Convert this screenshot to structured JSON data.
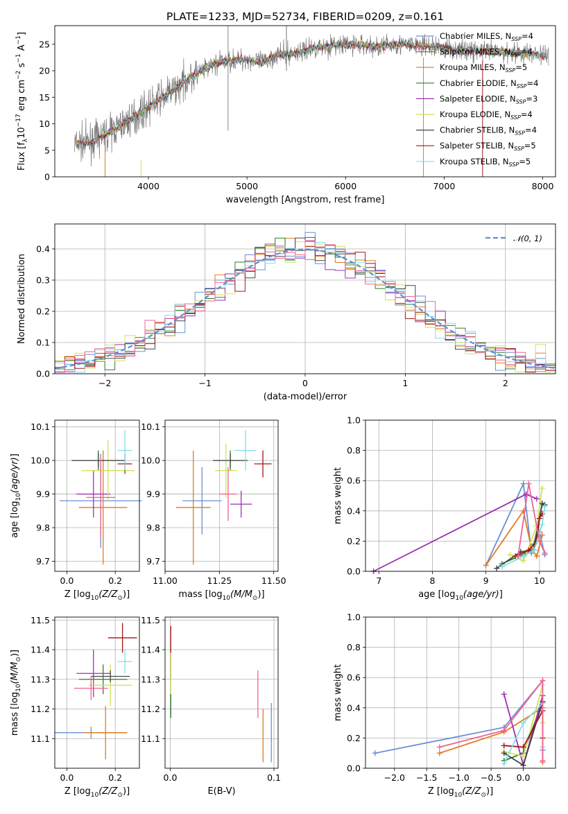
{
  "figure": {
    "title": "PLATE=1233, MJD=52734, FIBERID=0209, z=0.161",
    "colors": [
      "#6a8fd8",
      "#e07b1f",
      "#aaaaaa",
      "#2e7d32",
      "#9b2fb0",
      "#d4e157",
      "#444444",
      "#a31515",
      "#80deea",
      "#f06292",
      "#777777"
    ]
  },
  "chart_data": [
    {
      "id": "spectrum",
      "type": "line",
      "title": "PLATE=1233, MJD=52734, FIBERID=0209, z=0.161",
      "xlabel": "wavelength [Angstrom, rest frame]",
      "ylabel": "Flux [f_λ 10^-17 erg cm^-2 s^-1 A^-1]",
      "xlim": [
        3050,
        8130
      ],
      "ylim": [
        0,
        28.5
      ],
      "xticks": [
        "4000",
        "5000",
        "6000",
        "7000",
        "8000"
      ],
      "yticks": [
        "0",
        "5",
        "10",
        "15",
        "20",
        "25"
      ],
      "grid": false,
      "legend_position": "top-right",
      "data_x": [
        3250,
        3400,
        3550,
        3700,
        3850,
        3950,
        4100,
        4250,
        4400,
        4550,
        4700,
        4850,
        5000,
        5150,
        5300,
        5500,
        5700,
        5900,
        6100,
        6300,
        6500,
        6700,
        6900,
        7100,
        7300,
        7500,
        7700,
        7900,
        8050
      ],
      "data_y": [
        6.2,
        6.5,
        7.8,
        9.5,
        11.2,
        12.5,
        14.5,
        16.2,
        18.5,
        20.0,
        21.5,
        22.0,
        22.2,
        21.5,
        23.0,
        23.3,
        24.5,
        24.8,
        25.0,
        24.5,
        25.0,
        24.8,
        24.5,
        24.0,
        23.8,
        23.5,
        23.5,
        23.2,
        22.8
      ],
      "legend": [
        {
          "label": "Chabrier MILES, N_SSP=4",
          "color": "#6a8fd8"
        },
        {
          "label": "Salpeter MILES, N_SSP=4",
          "color": "#777777"
        },
        {
          "label": "Kroupa MILES, N_SSP=5",
          "color": "#e07b1f"
        },
        {
          "label": "Chabrier ELODIE, N_SSP=4",
          "color": "#2e7d32"
        },
        {
          "label": "Salpeter ELODIE, N_SSP=3",
          "color": "#9b2fb0"
        },
        {
          "label": "Kroupa ELODIE, N_SSP=4",
          "color": "#d4e157"
        },
        {
          "label": "Chabrier STELIB, N_SSP=4",
          "color": "#444444"
        },
        {
          "label": "Salpeter STELIB, N_SSP=5",
          "color": "#a31515"
        },
        {
          "label": "Kroupa STELIB, N_SSP=5",
          "color": "#80deea"
        }
      ]
    },
    {
      "id": "residuals",
      "type": "line",
      "xlabel": "(data-model)/error",
      "ylabel": "Normed distribution",
      "xlim": [
        -2.5,
        2.5
      ],
      "ylim": [
        0,
        0.48
      ],
      "xticks": [
        "−2",
        "−1",
        "0",
        "1",
        "2"
      ],
      "yticks": [
        "0.0",
        "0.1",
        "0.2",
        "0.3",
        "0.4"
      ],
      "grid": true,
      "legend_position": "top-right",
      "legend": [
        {
          "label": "N(0,1)",
          "color": "#5a8fd8",
          "style": "dashed"
        }
      ],
      "series_colors": [
        "#6a8fd8",
        "#e07b1f",
        "#2e7d32",
        "#9b2fb0",
        "#d4e157",
        "#444444",
        "#a31515",
        "#80deea",
        "#f06292"
      ]
    },
    {
      "id": "age-vs-Z",
      "type": "scatter",
      "xlabel": "Z [log10(Z/Z⊙)]",
      "ylabel": "age [log10(age/yr)]",
      "xlim": [
        -0.05,
        0.3
      ],
      "ylim": [
        9.67,
        10.12
      ],
      "xticks": [
        "0.0",
        "0.2"
      ],
      "yticks": [
        "9.7",
        "9.8",
        "9.9",
        "10.0",
        "10.1"
      ],
      "grid": true,
      "points": [
        {
          "x": 0.14,
          "y": 9.88,
          "xerr": 0.17,
          "yerr": 0.14,
          "color": "#6a8fd8"
        },
        {
          "x": 0.15,
          "y": 9.86,
          "xerr": 0.1,
          "yerr": 0.17,
          "color": "#e07b1f"
        },
        {
          "x": 0.13,
          "y": 10.0,
          "xerr": 0.11,
          "yerr": 0.03,
          "color": "#2e7d32"
        },
        {
          "x": 0.11,
          "y": 9.9,
          "xerr": 0.07,
          "yerr": 0.07,
          "color": "#9b2fb0"
        },
        {
          "x": 0.17,
          "y": 9.97,
          "xerr": 0.11,
          "yerr": 0.09,
          "color": "#d4e157"
        },
        {
          "x": 0.13,
          "y": 10.0,
          "xerr": 0.11,
          "yerr": 0.02,
          "color": "#444444"
        },
        {
          "x": 0.24,
          "y": 9.99,
          "xerr": 0.03,
          "yerr": 0.03,
          "color": "#a31515"
        },
        {
          "x": 0.24,
          "y": 10.03,
          "xerr": 0.03,
          "yerr": 0.06,
          "color": "#80deea"
        },
        {
          "x": 0.14,
          "y": 9.89,
          "xerr": 0.06,
          "yerr": 0.12,
          "color": "#f06292"
        }
      ]
    },
    {
      "id": "age-vs-mass",
      "type": "scatter",
      "xlabel": "mass [log10(M/M⊙)]",
      "ylabel": "",
      "xlim": [
        11.0,
        11.52
      ],
      "ylim": [
        9.67,
        10.12
      ],
      "xticks": [
        "11.00",
        "11.25",
        "11.50"
      ],
      "yticks": [
        "9.7",
        "9.8",
        "9.9",
        "10.0",
        "10.1"
      ],
      "grid": true,
      "points": [
        {
          "x": 11.17,
          "y": 9.88,
          "xerr": 0.09,
          "yerr": 0.1,
          "color": "#6a8fd8"
        },
        {
          "x": 11.13,
          "y": 9.86,
          "xerr": 0.08,
          "yerr": 0.17,
          "color": "#e07b1f"
        },
        {
          "x": 11.3,
          "y": 10.0,
          "xerr": 0.08,
          "yerr": 0.03,
          "color": "#2e7d32"
        },
        {
          "x": 11.35,
          "y": 9.87,
          "xerr": 0.05,
          "yerr": 0.04,
          "color": "#9b2fb0"
        },
        {
          "x": 11.28,
          "y": 9.97,
          "xerr": 0.05,
          "yerr": 0.08,
          "color": "#d4e157"
        },
        {
          "x": 11.3,
          "y": 10.0,
          "xerr": 0.08,
          "yerr": 0.02,
          "color": "#444444"
        },
        {
          "x": 11.45,
          "y": 9.99,
          "xerr": 0.04,
          "yerr": 0.04,
          "color": "#a31515"
        },
        {
          "x": 11.37,
          "y": 10.03,
          "xerr": 0.05,
          "yerr": 0.06,
          "color": "#80deea"
        },
        {
          "x": 11.29,
          "y": 9.9,
          "xerr": 0.04,
          "yerr": 0.08,
          "color": "#f06292"
        }
      ]
    },
    {
      "id": "massweight-vs-age",
      "type": "line",
      "xlabel": "age [log10(age/yr)]",
      "ylabel": "mass weight",
      "xlim": [
        6.75,
        10.3
      ],
      "ylim": [
        0,
        1.0
      ],
      "xticks": [
        "7",
        "8",
        "9",
        "10"
      ],
      "yticks": [
        "0.0",
        "0.2",
        "0.4",
        "0.6",
        "0.8",
        "1.0"
      ],
      "grid": true,
      "series": [
        {
          "color": "#6a8fd8",
          "x": [
            9.0,
            9.7,
            9.85,
            10.0,
            10.1
          ],
          "y": [
            0.04,
            0.58,
            0.12,
            0.26,
            0.11
          ]
        },
        {
          "color": "#e07b1f",
          "x": [
            9.0,
            9.7,
            9.85,
            9.95,
            10.05
          ],
          "y": [
            0.04,
            0.4,
            0.15,
            0.1,
            0.24
          ]
        },
        {
          "color": "#2e7d32",
          "x": [
            9.3,
            9.75,
            9.9,
            10.05
          ],
          "y": [
            0.05,
            0.12,
            0.18,
            0.44
          ]
        },
        {
          "color": "#9b2fb0",
          "x": [
            6.9,
            9.75,
            9.95
          ],
          "y": [
            0.0,
            0.51,
            0.48
          ]
        },
        {
          "color": "#d4e157",
          "x": [
            9.45,
            9.7,
            9.95,
            10.05
          ],
          "y": [
            0.11,
            0.07,
            0.3,
            0.55
          ]
        },
        {
          "color": "#444444",
          "x": [
            9.2,
            9.65,
            9.9,
            10.05,
            10.1
          ],
          "y": [
            0.02,
            0.13,
            0.14,
            0.45,
            0.44
          ]
        },
        {
          "color": "#a31515",
          "x": [
            9.55,
            9.8,
            9.95,
            10.0,
            10.05
          ],
          "y": [
            0.1,
            0.14,
            0.2,
            0.35,
            0.38
          ]
        },
        {
          "color": "#80deea",
          "x": [
            9.3,
            9.7,
            9.9,
            10.05,
            10.1
          ],
          "y": [
            0.03,
            0.1,
            0.14,
            0.31,
            0.43
          ]
        },
        {
          "color": "#f06292",
          "x": [
            9.6,
            9.8,
            10.0,
            10.1
          ],
          "y": [
            0.1,
            0.58,
            0.2,
            0.12
          ]
        }
      ]
    },
    {
      "id": "mass-vs-Z",
      "type": "scatter",
      "xlabel": "Z [log10(Z/Z⊙)]",
      "ylabel": "mass [log10(M/M⊙)]",
      "xlim": [
        -0.05,
        0.3
      ],
      "ylim": [
        11.0,
        11.51
      ],
      "xticks": [
        "0.0",
        "0.2"
      ],
      "yticks": [
        "11.1",
        "11.2",
        "11.3",
        "11.4",
        "11.5"
      ],
      "grid": true,
      "points": [
        {
          "x": 0.1,
          "y": 11.12,
          "xerr": 0.15,
          "yerr": 0.02,
          "color": "#6a8fd8"
        },
        {
          "x": 0.16,
          "y": 11.12,
          "xerr": 0.09,
          "yerr": 0.09,
          "color": "#e07b1f"
        },
        {
          "x": 0.15,
          "y": 11.3,
          "xerr": 0.1,
          "yerr": 0.05,
          "color": "#2e7d32"
        },
        {
          "x": 0.11,
          "y": 11.32,
          "xerr": 0.07,
          "yerr": 0.08,
          "color": "#9b2fb0"
        },
        {
          "x": 0.18,
          "y": 11.28,
          "xerr": 0.09,
          "yerr": 0.07,
          "color": "#d4e157"
        },
        {
          "x": 0.18,
          "y": 11.31,
          "xerr": 0.08,
          "yerr": 0.02,
          "color": "#444444"
        },
        {
          "x": 0.23,
          "y": 11.44,
          "xerr": 0.06,
          "yerr": 0.05,
          "color": "#a31515"
        },
        {
          "x": 0.24,
          "y": 11.36,
          "xerr": 0.03,
          "yerr": 0.04,
          "color": "#80deea"
        },
        {
          "x": 0.1,
          "y": 11.27,
          "xerr": 0.07,
          "yerr": 0.04,
          "color": "#f06292"
        }
      ]
    },
    {
      "id": "mass-vs-ebv",
      "type": "scatter",
      "xlabel": "E(B-V)",
      "ylabel": "",
      "xlim": [
        -0.005,
        0.104
      ],
      "ylim": [
        11.0,
        11.51
      ],
      "xticks": [
        "0.0",
        "0.1"
      ],
      "yticks": [
        "11.1",
        "11.2",
        "11.3",
        "11.4",
        "11.5"
      ],
      "grid": true,
      "points": [
        {
          "x": 0.0975,
          "y": 11.12,
          "yerr": 0.1,
          "color": "#6a8fd8"
        },
        {
          "x": 0.0895,
          "y": 11.11,
          "yerr": 0.09,
          "color": "#e07b1f"
        },
        {
          "x": 0.0005,
          "y": 11.39,
          "yerr": 0.09,
          "color": "#a31515"
        },
        {
          "x": 0.0005,
          "y": 11.29,
          "yerr": 0.1,
          "color": "#d4e157"
        },
        {
          "x": 0.0005,
          "y": 11.21,
          "yerr": 0.04,
          "color": "#2e7d32"
        },
        {
          "x": 0.0845,
          "y": 11.25,
          "yerr": 0.08,
          "color": "#f06292"
        }
      ]
    },
    {
      "id": "massweight-vs-Z",
      "type": "line",
      "xlabel": "Z [log10(Z/Z⊙)]",
      "ylabel": "mass weight",
      "xlim": [
        -2.45,
        0.5
      ],
      "ylim": [
        0,
        1.0
      ],
      "xticks": [
        "−2.0",
        "−1.5",
        "−1.0",
        "−0.5",
        "0.0"
      ],
      "yticks": [
        "0.0",
        "0.2",
        "0.4",
        "0.6",
        "0.8",
        "1.0"
      ],
      "grid": true,
      "series": [
        {
          "color": "#6a8fd8",
          "x": [
            -2.3,
            -0.3,
            0.3,
            0.3
          ],
          "y": [
            0.1,
            0.27,
            0.58,
            0.12
          ]
        },
        {
          "color": "#e07b1f",
          "x": [
            -1.3,
            -0.3,
            0.3,
            0.3
          ],
          "y": [
            0.1,
            0.24,
            0.4,
            0.04
          ]
        },
        {
          "color": "#2e7d32",
          "x": [
            -0.3,
            0.0,
            0.3
          ],
          "y": [
            0.05,
            0.1,
            0.44
          ]
        },
        {
          "color": "#9b2fb0",
          "x": [
            -0.3,
            0.0,
            0.3
          ],
          "y": [
            0.49,
            0.02,
            0.48
          ]
        },
        {
          "color": "#d4e157",
          "x": [
            -0.3,
            0.0,
            0.3,
            0.3
          ],
          "y": [
            0.11,
            0.08,
            0.55,
            0.3
          ]
        },
        {
          "color": "#444444",
          "x": [
            -0.3,
            0.0,
            0.3
          ],
          "y": [
            0.1,
            0.02,
            0.44
          ]
        },
        {
          "color": "#a31515",
          "x": [
            -0.3,
            0.0,
            0.3,
            0.3
          ],
          "y": [
            0.15,
            0.14,
            0.38,
            0.2
          ]
        },
        {
          "color": "#80deea",
          "x": [
            -0.3,
            0.0,
            0.3,
            0.3
          ],
          "y": [
            0.03,
            0.3,
            0.43,
            0.14
          ]
        },
        {
          "color": "#f06292",
          "x": [
            -1.3,
            -0.3,
            0.3,
            0.3
          ],
          "y": [
            0.14,
            0.25,
            0.58,
            0.05
          ]
        }
      ]
    }
  ]
}
